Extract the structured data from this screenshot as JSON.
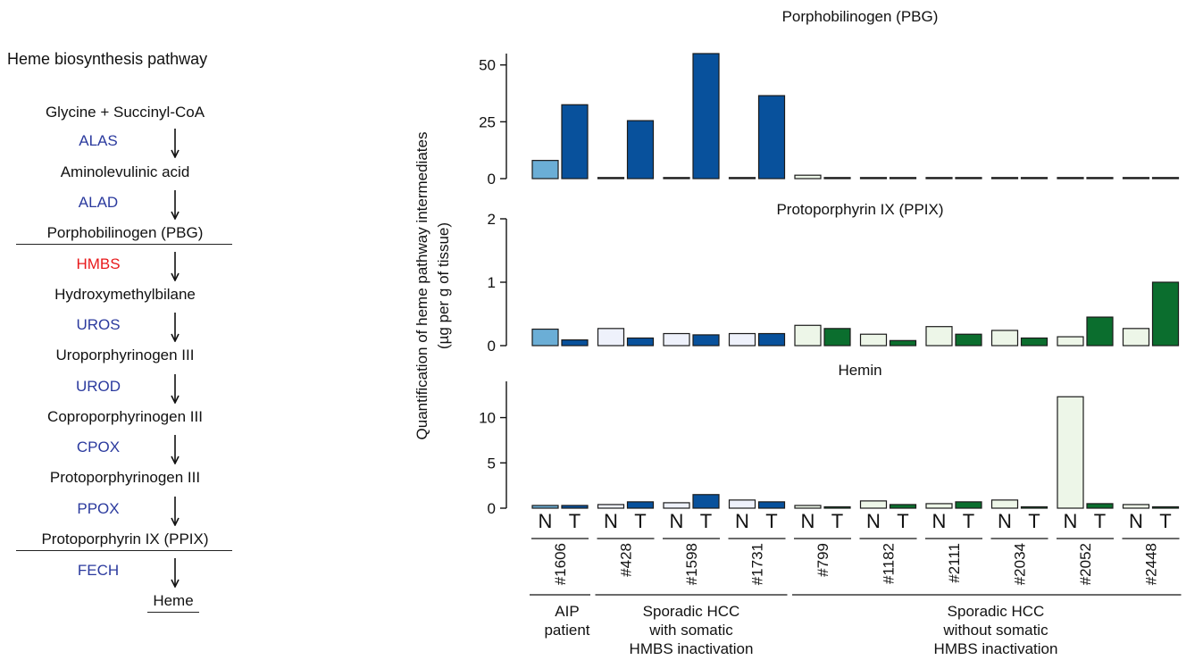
{
  "pathway": {
    "title": "Heme biosynthesis pathway",
    "steps": [
      "Glycine + Succinyl-CoA",
      "Aminolevulinic acid",
      "Porphobilinogen (PBG)",
      "Hydroxymethylbilane",
      "Uroporphyrinogen III",
      "Coproporphyrinogen III",
      "Protoporphyrinogen III",
      "Protoporphyrin IX (PPIX)",
      "Heme"
    ],
    "enzymes": [
      {
        "name": "ALAS",
        "color": "#2b3a9e"
      },
      {
        "name": "ALAD",
        "color": "#2b3a9e"
      },
      {
        "name": "HMBS",
        "color": "#e8191b"
      },
      {
        "name": "UROS",
        "color": "#2b3a9e"
      },
      {
        "name": "UROD",
        "color": "#2b3a9e"
      },
      {
        "name": "CPOX",
        "color": "#2b3a9e"
      },
      {
        "name": "PPOX",
        "color": "#2b3a9e"
      },
      {
        "name": "FECH",
        "color": "#2b3a9e"
      }
    ]
  },
  "chart_data": {
    "type": "bar",
    "ylabel": "Quantification of heme pathway intermediates",
    "ylabel2": "(µg per g of tissue)",
    "pair_labels": [
      "N",
      "T"
    ],
    "samples": [
      "#1606",
      "#428",
      "#1598",
      "#1731",
      "#799",
      "#1182",
      "#2111",
      "#2034",
      "#2052",
      "#2448"
    ],
    "groups": [
      {
        "label_lines": [
          "AIP",
          "patient"
        ],
        "samples": [
          "#1606"
        ]
      },
      {
        "label_lines": [
          "Sporadic HCC",
          "with somatic",
          "HMBS inactivation"
        ],
        "samples": [
          "#428",
          "#1598",
          "#1731"
        ]
      },
      {
        "label_lines": [
          "Sporadic HCC",
          "without somatic",
          "HMBS inactivation"
        ],
        "samples": [
          "#799",
          "#1182",
          "#2111",
          "#2034",
          "#2052",
          "#2448"
        ]
      }
    ],
    "colors": {
      "aip_N": "#6baed6",
      "aip_T": "#08519c",
      "with_N": "#eef1fb",
      "with_T": "#08519c",
      "without_N": "#edf6e8",
      "without_T": "#0b6e2e"
    },
    "panels": [
      {
        "title": "Porphobilinogen (PBG)",
        "ylim": [
          0,
          55
        ],
        "yticks": [
          0,
          25,
          50
        ],
        "N": [
          8,
          0.3,
          0.2,
          0.2,
          1.5,
          0.1,
          0.1,
          0.1,
          0.1,
          0.1
        ],
        "T": [
          32.5,
          25.5,
          55.5,
          36.5,
          0.1,
          0.1,
          0.1,
          0.1,
          0.1,
          0.1
        ]
      },
      {
        "title": "Protoporphyrin IX (PPIX)",
        "ylim": [
          0,
          2
        ],
        "yticks": [
          0,
          1,
          2
        ],
        "N": [
          0.26,
          0.27,
          0.19,
          0.19,
          0.32,
          0.18,
          0.3,
          0.24,
          0.14,
          0.27
        ],
        "T": [
          0.09,
          0.12,
          0.17,
          0.19,
          0.27,
          0.08,
          0.18,
          0.12,
          0.45,
          1.0
        ]
      },
      {
        "title": "Hemin",
        "ylim": [
          0,
          14
        ],
        "yticks": [
          0,
          5,
          10
        ],
        "N": [
          0.3,
          0.4,
          0.6,
          0.9,
          0.3,
          0.8,
          0.5,
          0.9,
          12.3,
          0.4
        ],
        "T": [
          0.3,
          0.7,
          1.5,
          0.7,
          0.15,
          0.4,
          0.7,
          0.15,
          0.5,
          0.15
        ]
      }
    ]
  }
}
